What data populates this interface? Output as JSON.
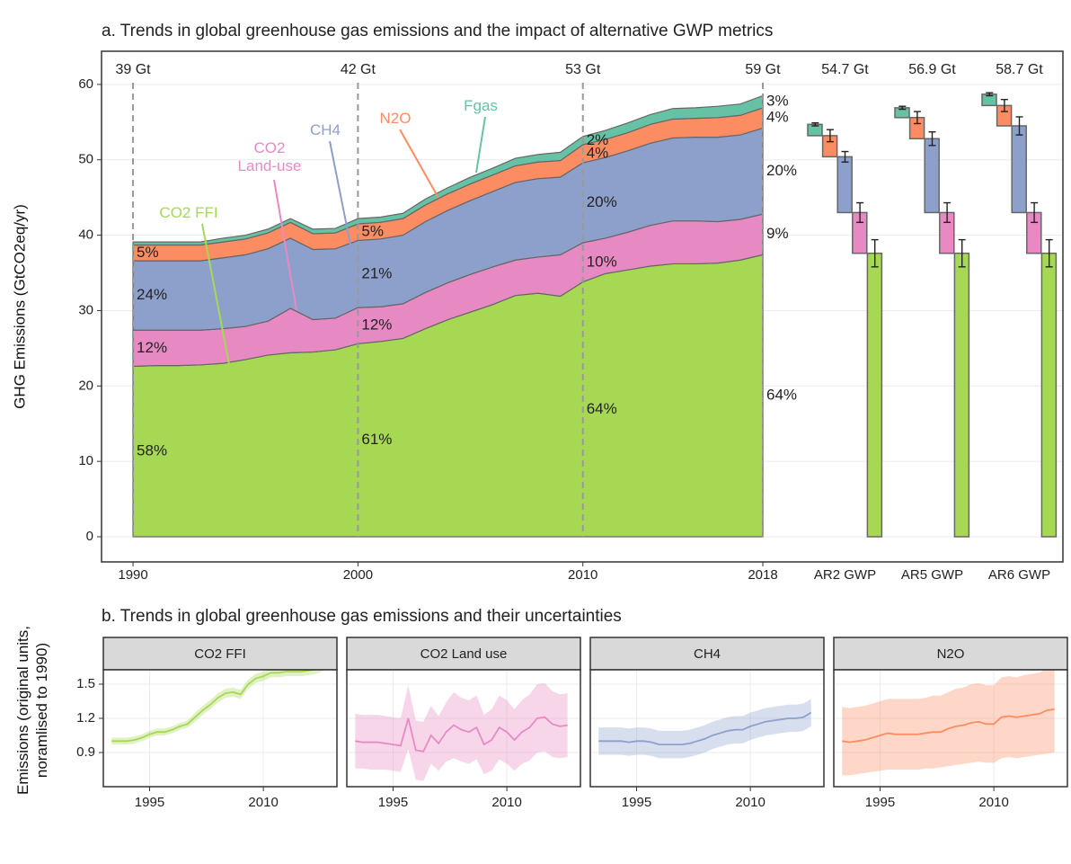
{
  "chart_data": [
    {
      "type": "stacked-area",
      "title": "a. Trends in global greenhouse gas emissions and the impact of alternative GWP metrics",
      "ylabel": "GHG Emissions (GtCO2eq/yr)",
      "x": [
        1990,
        1991,
        1992,
        1993,
        1994,
        1995,
        1996,
        1997,
        1998,
        1999,
        2000,
        2001,
        2002,
        2003,
        2004,
        2005,
        2006,
        2007,
        2008,
        2009,
        2010,
        2011,
        2012,
        2013,
        2014,
        2015,
        2016,
        2017,
        2018
      ],
      "xlim": [
        1988.6,
        2018
      ],
      "xticks": [
        1990,
        2000,
        2010,
        2018
      ],
      "ylim": [
        -3.34,
        64.4
      ],
      "yticks": [
        0,
        10,
        20,
        30,
        40,
        50,
        60
      ],
      "grid": true,
      "series": [
        {
          "name": "CO2 FFI",
          "color": "#a6d854",
          "values": [
            22.6,
            22.7,
            22.7,
            22.8,
            23.0,
            23.5,
            24.1,
            24.4,
            24.5,
            24.8,
            25.6,
            25.9,
            26.3,
            27.6,
            28.8,
            29.8,
            30.8,
            32.0,
            32.3,
            31.9,
            33.8,
            34.9,
            35.4,
            35.9,
            36.2,
            36.2,
            36.3,
            36.7,
            37.4
          ]
        },
        {
          "name": "CO2 Land-use",
          "color": "#e78ac3",
          "values": [
            4.8,
            4.7,
            4.7,
            4.6,
            4.6,
            4.4,
            4.5,
            5.9,
            4.3,
            4.2,
            4.8,
            4.6,
            4.6,
            4.8,
            4.9,
            5.0,
            5.0,
            4.7,
            4.8,
            5.5,
            5.2,
            4.7,
            5.0,
            5.4,
            5.7,
            5.7,
            5.5,
            5.4,
            5.4
          ]
        },
        {
          "name": "CH4",
          "color": "#8da0cb",
          "values": [
            9.2,
            9.2,
            9.2,
            9.2,
            9.4,
            9.5,
            9.6,
            9.3,
            9.3,
            9.2,
            8.9,
            9.0,
            9.1,
            9.4,
            9.6,
            9.8,
            10.0,
            10.3,
            10.4,
            10.3,
            10.6,
            10.7,
            10.8,
            10.9,
            11.0,
            11.1,
            11.2,
            11.2,
            11.4
          ]
        },
        {
          "name": "N2O",
          "color": "#fc8d62",
          "values": [
            2.1,
            2.1,
            2.1,
            2.1,
            2.1,
            2.1,
            2.1,
            2.1,
            2.1,
            2.1,
            2.2,
            2.2,
            2.2,
            2.2,
            2.2,
            2.2,
            2.2,
            2.2,
            2.2,
            2.2,
            2.4,
            2.4,
            2.4,
            2.5,
            2.5,
            2.5,
            2.6,
            2.6,
            2.7
          ]
        },
        {
          "name": "Fgas",
          "color": "#66c2a5",
          "values": [
            0.4,
            0.4,
            0.4,
            0.4,
            0.5,
            0.5,
            0.5,
            0.5,
            0.6,
            0.6,
            0.7,
            0.7,
            0.7,
            0.8,
            0.8,
            0.9,
            0.9,
            1.0,
            1.0,
            1.1,
            1.1,
            1.2,
            1.3,
            1.3,
            1.4,
            1.4,
            1.5,
            1.5,
            1.6
          ]
        }
      ],
      "milestones": [
        {
          "x": 1990,
          "total_label": "39 Gt",
          "share_labels": [
            "58%",
            "12%",
            "24%",
            "5%",
            null
          ]
        },
        {
          "x": 2000,
          "total_label": "42 Gt",
          "share_labels": [
            "61%",
            "12%",
            "21%",
            "5%",
            null
          ]
        },
        {
          "x": 2010,
          "total_label": "53 Gt",
          "share_labels": [
            "64%",
            "10%",
            "20%",
            "4%",
            "2%"
          ]
        },
        {
          "x": 2018,
          "total_label": "59 Gt",
          "share_labels": [
            "64%",
            "9%",
            "20%",
            "4%",
            "3%"
          ]
        }
      ],
      "gwp_groups": [
        {
          "label": "AR2 GWP",
          "total_label": "54.7 Gt",
          "values": [
            37.6,
            5.4,
            7.4,
            2.8,
            1.5
          ],
          "errors": [
            1.8,
            1.3,
            0.7,
            0.8,
            0.2
          ]
        },
        {
          "label": "AR5 GWP",
          "total_label": "56.9 Gt",
          "values": [
            37.6,
            5.4,
            9.8,
            2.8,
            1.3
          ],
          "errors": [
            1.8,
            1.3,
            0.9,
            0.8,
            0.2
          ]
        },
        {
          "label": "AR6 GWP",
          "total_label": "58.7 Gt",
          "values": [
            37.6,
            5.4,
            11.5,
            2.7,
            1.5
          ],
          "errors": [
            1.8,
            1.3,
            1.2,
            0.8,
            0.2
          ]
        }
      ]
    },
    {
      "type": "line-band",
      "title": "b. Trends in global greenhouse gas emissions and their uncertainties",
      "ylabel": "Emissions (original units, noramlised to 1990)",
      "x": [
        1990,
        1991,
        1992,
        1993,
        1994,
        1995,
        1996,
        1997,
        1998,
        1999,
        2000,
        2001,
        2002,
        2003,
        2004,
        2005,
        2006,
        2007,
        2008,
        2009,
        2010,
        2011,
        2012,
        2013,
        2014,
        2015,
        2016,
        2017,
        2018
      ],
      "xlim": [
        1988.9,
        2019.7
      ],
      "xticks": [
        1995,
        2010
      ],
      "ylim": [
        0.6,
        1.626
      ],
      "yticks": [
        0.9,
        1.2,
        1.5
      ],
      "grid": true,
      "facets": [
        {
          "name": "CO2 FFI",
          "color": "#a6d854",
          "values": [
            1.0,
            1.0,
            1.0,
            1.01,
            1.03,
            1.06,
            1.08,
            1.08,
            1.1,
            1.13,
            1.15,
            1.21,
            1.27,
            1.32,
            1.38,
            1.42,
            1.43,
            1.41,
            1.5,
            1.55,
            1.57,
            1.6,
            1.6,
            1.61,
            1.61,
            1.61,
            1.62,
            1.63,
            1.66
          ],
          "lower": [
            0.97,
            0.97,
            0.97,
            0.98,
            1.0,
            1.03,
            1.05,
            1.05,
            1.07,
            1.1,
            1.12,
            1.17,
            1.23,
            1.28,
            1.34,
            1.38,
            1.39,
            1.37,
            1.46,
            1.51,
            1.53,
            1.56,
            1.56,
            1.57,
            1.57,
            1.57,
            1.58,
            1.59,
            1.62
          ],
          "upper": [
            1.03,
            1.03,
            1.03,
            1.04,
            1.06,
            1.09,
            1.11,
            1.11,
            1.13,
            1.16,
            1.18,
            1.25,
            1.31,
            1.36,
            1.42,
            1.46,
            1.47,
            1.45,
            1.54,
            1.59,
            1.61,
            1.64,
            1.64,
            1.65,
            1.65,
            1.65,
            1.66,
            1.67,
            1.7
          ]
        },
        {
          "name": "CO2 Land use",
          "color": "#e78ac3",
          "values": [
            1.0,
            0.99,
            0.99,
            0.99,
            0.98,
            0.97,
            0.96,
            1.2,
            0.92,
            0.91,
            1.05,
            0.98,
            1.08,
            1.14,
            1.1,
            1.08,
            1.12,
            0.97,
            1.01,
            1.12,
            1.08,
            1.01,
            1.08,
            1.12,
            1.2,
            1.21,
            1.15,
            1.13,
            1.14
          ],
          "lower": [
            0.76,
            0.76,
            0.75,
            0.75,
            0.75,
            0.74,
            0.73,
            0.93,
            0.66,
            0.65,
            0.8,
            0.74,
            0.82,
            0.85,
            0.82,
            0.8,
            0.84,
            0.71,
            0.74,
            0.84,
            0.8,
            0.74,
            0.8,
            0.83,
            0.9,
            0.91,
            0.86,
            0.85,
            0.86
          ],
          "upper": [
            1.24,
            1.23,
            1.23,
            1.23,
            1.22,
            1.21,
            1.2,
            1.49,
            1.18,
            1.17,
            1.31,
            1.22,
            1.34,
            1.43,
            1.38,
            1.36,
            1.4,
            1.23,
            1.28,
            1.4,
            1.36,
            1.28,
            1.36,
            1.41,
            1.5,
            1.51,
            1.44,
            1.41,
            1.42
          ]
        },
        {
          "name": "CH4",
          "color": "#8da0cb",
          "values": [
            1.0,
            1.0,
            1.0,
            1.0,
            0.99,
            1.0,
            1.0,
            0.99,
            0.97,
            0.97,
            0.97,
            0.97,
            0.98,
            1.0,
            1.02,
            1.05,
            1.07,
            1.09,
            1.1,
            1.1,
            1.13,
            1.15,
            1.17,
            1.18,
            1.19,
            1.2,
            1.2,
            1.21,
            1.25
          ],
          "lower": [
            0.88,
            0.88,
            0.88,
            0.88,
            0.87,
            0.88,
            0.88,
            0.87,
            0.85,
            0.85,
            0.85,
            0.85,
            0.86,
            0.88,
            0.9,
            0.93,
            0.95,
            0.97,
            0.98,
            0.98,
            1.01,
            1.03,
            1.05,
            1.06,
            1.07,
            1.08,
            1.08,
            1.09,
            1.13
          ],
          "upper": [
            1.12,
            1.12,
            1.12,
            1.12,
            1.11,
            1.12,
            1.12,
            1.11,
            1.09,
            1.09,
            1.09,
            1.09,
            1.1,
            1.12,
            1.14,
            1.17,
            1.19,
            1.21,
            1.22,
            1.22,
            1.25,
            1.27,
            1.29,
            1.3,
            1.31,
            1.32,
            1.32,
            1.33,
            1.37
          ]
        },
        {
          "name": "N2O",
          "color": "#fc8d62",
          "values": [
            1.0,
            0.99,
            1.0,
            1.01,
            1.03,
            1.05,
            1.07,
            1.06,
            1.06,
            1.06,
            1.06,
            1.07,
            1.08,
            1.08,
            1.11,
            1.13,
            1.14,
            1.16,
            1.17,
            1.15,
            1.15,
            1.21,
            1.22,
            1.21,
            1.22,
            1.23,
            1.24,
            1.27,
            1.28
          ],
          "lower": [
            0.7,
            0.7,
            0.71,
            0.72,
            0.73,
            0.74,
            0.75,
            0.75,
            0.75,
            0.75,
            0.75,
            0.76,
            0.76,
            0.77,
            0.78,
            0.79,
            0.8,
            0.81,
            0.82,
            0.81,
            0.81,
            0.85,
            0.86,
            0.85,
            0.86,
            0.87,
            0.88,
            0.89,
            0.9
          ],
          "upper": [
            1.3,
            1.29,
            1.3,
            1.31,
            1.33,
            1.35,
            1.37,
            1.37,
            1.37,
            1.37,
            1.37,
            1.38,
            1.4,
            1.4,
            1.43,
            1.46,
            1.47,
            1.5,
            1.51,
            1.49,
            1.49,
            1.56,
            1.57,
            1.56,
            1.58,
            1.59,
            1.6,
            1.64,
            1.66
          ]
        }
      ]
    }
  ]
}
